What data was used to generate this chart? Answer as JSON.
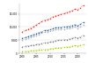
{
  "years": [
    2000,
    2001,
    2002,
    2003,
    2004,
    2005,
    2006,
    2007,
    2008,
    2009,
    2010,
    2011,
    2012,
    2013,
    2014,
    2015,
    2016,
    2017,
    2018,
    2019,
    2020,
    2021,
    2022
  ],
  "series": {
    "La Reunion": {
      "color": "#e8392a",
      "values": [
        8200,
        8700,
        9200,
        9600,
        10200,
        10800,
        11400,
        12000,
        12600,
        12800,
        13200,
        13800,
        14200,
        14500,
        14800,
        15100,
        15400,
        15800,
        16300,
        16800,
        16500,
        17200,
        18200
      ]
    },
    "Martinique": {
      "color": "#1f5fa6",
      "values": [
        5800,
        6100,
        6400,
        6700,
        7100,
        7500,
        7900,
        8300,
        8700,
        8800,
        9000,
        9400,
        9700,
        9800,
        9900,
        10000,
        10100,
        10300,
        10600,
        10900,
        10500,
        11000,
        11800
      ]
    },
    "French Guiana": {
      "color": "#808080",
      "values": [
        2600,
        2750,
        2900,
        3050,
        3200,
        3400,
        3600,
        3800,
        4000,
        4100,
        4300,
        4600,
        4800,
        5000,
        5100,
        5200,
        5300,
        5500,
        5800,
        6100,
        5900,
        6300,
        6900
      ]
    },
    "Guadeloupe": {
      "color": "#b0b0b0",
      "values": [
        5200,
        5500,
        5800,
        6100,
        6500,
        6900,
        7300,
        7700,
        8100,
        8200,
        8400,
        8800,
        9000,
        9100,
        9200,
        9300,
        9400,
        9500,
        9800,
        10000,
        9600,
        10100,
        10900
      ]
    },
    "Mayotte": {
      "color": "#a9d200",
      "values": [
        800,
        870,
        940,
        1010,
        1100,
        1200,
        1310,
        1430,
        1560,
        1620,
        1740,
        1900,
        2050,
        2150,
        2250,
        2350,
        2450,
        2600,
        2800,
        3000,
        2900,
        3100,
        3400
      ]
    }
  },
  "ylim": [
    0,
    19000
  ],
  "yticks": [
    0,
    5000,
    10000,
    15000
  ],
  "ytick_labels": [
    "0",
    "5,000",
    "10,000",
    "15,000"
  ],
  "xticks": [
    2000,
    2005,
    2010,
    2015,
    2020
  ],
  "background_color": "#ffffff",
  "grid_color": "#dddddd",
  "markersize": 1.0,
  "linewidth": 0.5
}
